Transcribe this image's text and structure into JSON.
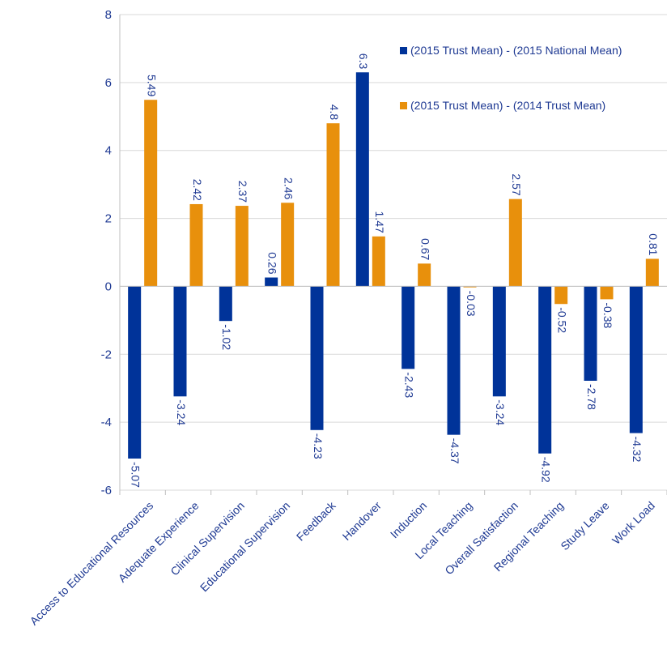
{
  "chart_data": {
    "type": "bar",
    "title": "",
    "xlabel": "",
    "ylabel": "",
    "ylim": [
      -6,
      8
    ],
    "yticks": [
      -6,
      -4,
      -2,
      0,
      2,
      4,
      6,
      8
    ],
    "ytick_labels": [
      "-6",
      "-4",
      "-2",
      "0",
      "2",
      "4",
      "6",
      "8"
    ],
    "grid": true,
    "legend_position": "top-right",
    "categories": [
      "Access to Educational Resources",
      "Adequate Experience",
      "Clinical Supervision",
      "Educational Supervision",
      "Feedback",
      "Handover",
      "Induction",
      "Local Teaching",
      "Overall Satisfaction",
      "Regional Teaching",
      "Study Leave",
      "Work Load"
    ],
    "series": [
      {
        "name": "(2015 Trust Mean) - (2015 National Mean)",
        "color": "#003399",
        "values": [
          -5.07,
          -3.24,
          -1.02,
          0.26,
          -4.23,
          6.3,
          -2.43,
          -4.37,
          -3.24,
          -4.92,
          -2.78,
          -4.32
        ],
        "labels": [
          "-5.07",
          "-3.24",
          "-1.02",
          "0.26",
          "-4.23",
          "6.3",
          "-2.43",
          "-4.37",
          "-3.24",
          "-4.92",
          "-2.78",
          "-4.32"
        ]
      },
      {
        "name": "(2015 Trust Mean) - (2014 Trust Mean)",
        "color": "#e8900c",
        "values": [
          5.49,
          2.42,
          2.37,
          2.46,
          4.8,
          1.47,
          0.67,
          -0.03,
          2.57,
          -0.52,
          -0.38,
          0.81
        ],
        "labels": [
          "5.49",
          "2.42",
          "2.37",
          "2.46",
          "4.8",
          "1.47",
          "0.67",
          "-0.03",
          "2.57",
          "-0.52",
          "-0.38",
          "0.81"
        ]
      }
    ]
  }
}
